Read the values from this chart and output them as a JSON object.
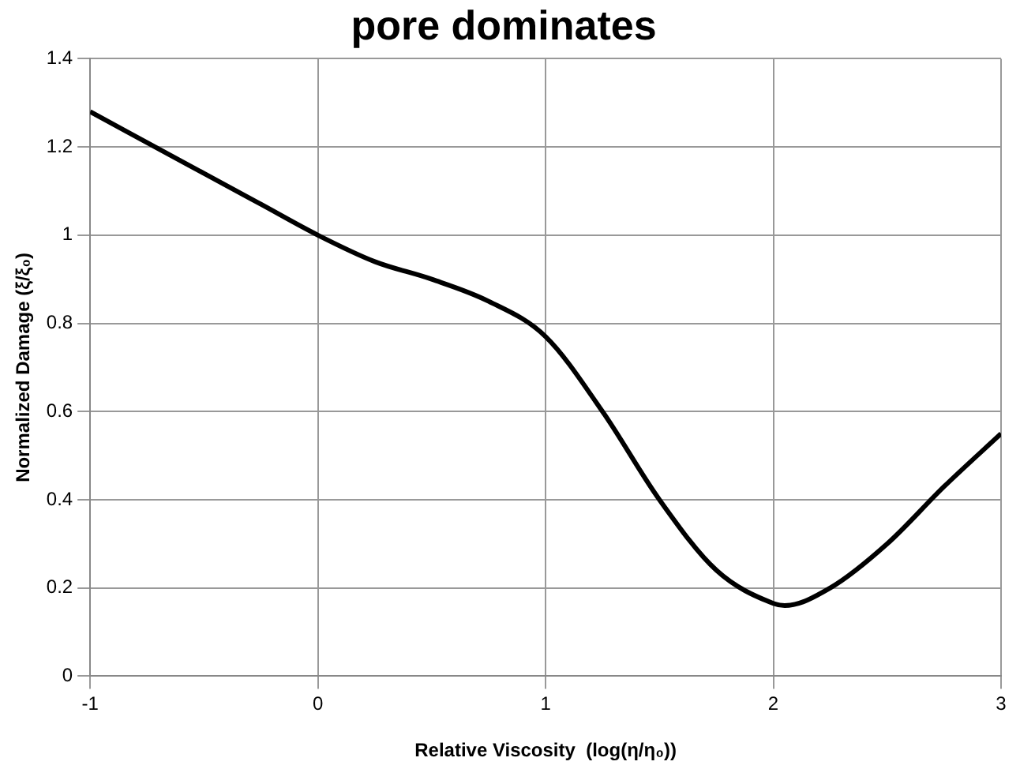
{
  "chart_data": {
    "type": "line",
    "title": "pore dominates",
    "xlabel": "Relative Viscosity  (log(η/η₀))",
    "ylabel": "Normalized Damage (ξ/ξ₀)",
    "x": [
      -1,
      -0.75,
      -0.5,
      -0.25,
      0,
      0.25,
      0.5,
      0.75,
      1,
      1.25,
      1.5,
      1.75,
      2,
      2.05,
      2.25,
      2.5,
      2.75,
      3
    ],
    "series": [
      {
        "color": "#000000",
        "values": [
          1.28,
          1.21,
          1.14,
          1.07,
          1.0,
          0.94,
          0.9,
          0.85,
          0.77,
          0.6,
          0.4,
          0.24,
          0.165,
          0.16,
          0.2,
          0.3,
          0.43,
          0.55
        ]
      }
    ],
    "xlim": [
      -1,
      3
    ],
    "xticks": [
      -1,
      0,
      1,
      2,
      3
    ],
    "ylim": [
      0,
      1.4
    ],
    "yticks": [
      0,
      0.2,
      0.4,
      0.6,
      0.8,
      1,
      1.2,
      1.4
    ],
    "grid": true,
    "legend": false,
    "marker": "none",
    "line_style": "solid"
  }
}
